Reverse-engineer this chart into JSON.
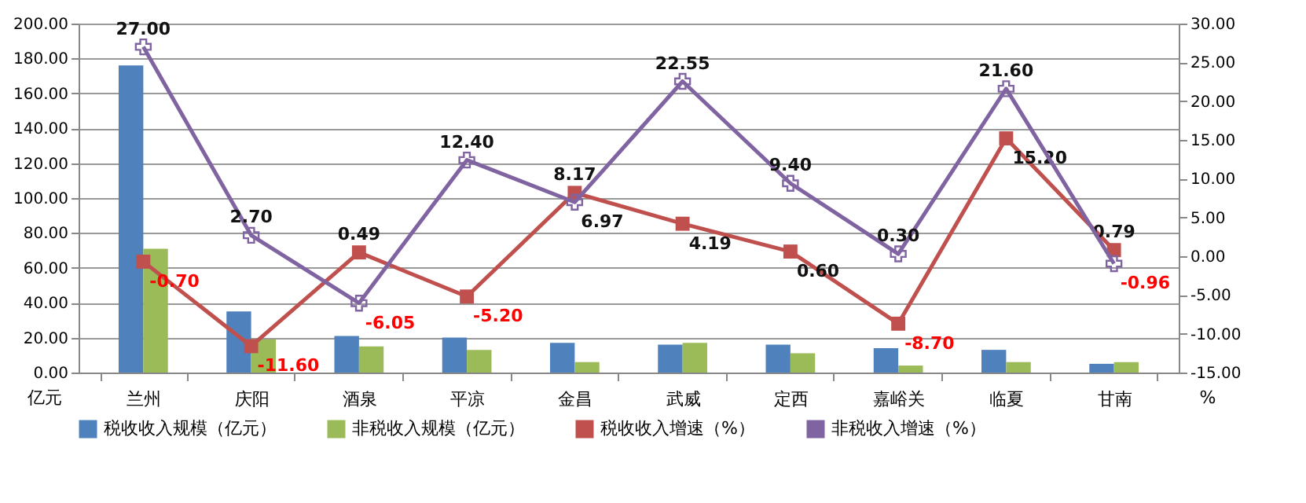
{
  "chart_data": {
    "type": "bar",
    "categories": [
      "兰州",
      "庆阳",
      "酒泉",
      "平凉",
      "金昌",
      "武威",
      "定西",
      "嘉峪关",
      "临夏",
      "甘南"
    ],
    "ylabel": "亿元",
    "y2label": "%",
    "ylim": [
      0,
      200
    ],
    "yticks": [
      {
        "value": 0,
        "label": "0.00"
      },
      {
        "value": 20,
        "label": "20.00"
      },
      {
        "value": 40,
        "label": "40.00"
      },
      {
        "value": 60,
        "label": "60.00"
      },
      {
        "value": 80,
        "label": "80.00"
      },
      {
        "value": 100,
        "label": "100.00"
      },
      {
        "value": 120,
        "label": "120.00"
      },
      {
        "value": 140,
        "label": "140.00"
      },
      {
        "value": 160,
        "label": "160.00"
      },
      {
        "value": 180,
        "label": "180.00"
      },
      {
        "value": 200,
        "label": "200.00"
      }
    ],
    "y2lim": [
      -15,
      30
    ],
    "y2ticks": [
      {
        "value": -15,
        "label": "-15.00"
      },
      {
        "value": -10,
        "label": "-10.00"
      },
      {
        "value": -5,
        "label": "-5.00"
      },
      {
        "value": 0,
        "label": "0.00"
      },
      {
        "value": 5,
        "label": "5.00"
      },
      {
        "value": 10,
        "label": "10.00"
      },
      {
        "value": 15,
        "label": "15.00"
      },
      {
        "value": 20,
        "label": "20.00"
      },
      {
        "value": 25,
        "label": "25.00"
      },
      {
        "value": 30,
        "label": "30.00"
      }
    ],
    "grid": "y",
    "legend": "bottom",
    "series": [
      {
        "name": "税收收入规模（亿元）",
        "color": "#4f81bd",
        "values": [
          176,
          35,
          21,
          20,
          17,
          16,
          16,
          14,
          13,
          5
        ]
      },
      {
        "name": "非税收入规模（亿元）",
        "color": "#9bbb59",
        "values": [
          71,
          19,
          15,
          13,
          6,
          17,
          11,
          4,
          6,
          6
        ]
      },
      {
        "name": "税收收入增速（%）",
        "type": "line",
        "axis": "y2",
        "marker": "square",
        "color": "#c0504d",
        "values": [
          -0.7,
          -11.6,
          0.49,
          -5.2,
          8.17,
          4.19,
          0.6,
          -8.7,
          15.2,
          0.79
        ],
        "value_labels": [
          "-0.70",
          "-11.60",
          "0.49",
          "-5.20",
          "8.17",
          "4.19",
          "0.60",
          "-8.70",
          "15.20",
          "0.79"
        ]
      },
      {
        "name": "非税收入增速（%）",
        "type": "line",
        "axis": "y2",
        "marker": "cross",
        "color": "#8064a2",
        "values": [
          27,
          2.7,
          -6.05,
          12.4,
          6.97,
          22.55,
          9.4,
          0.3,
          21.6,
          -0.96
        ],
        "value_labels": [
          "27.00",
          "2.70",
          "-6.05",
          "12.40",
          "6.97",
          "22.55",
          "9.40",
          "0.30",
          "21.60",
          "-0.96"
        ]
      }
    ]
  }
}
